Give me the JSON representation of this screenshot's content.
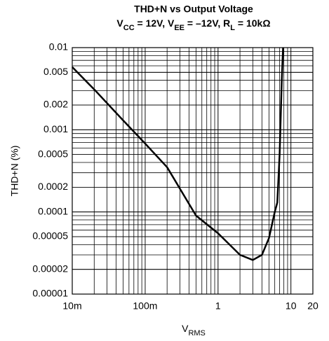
{
  "chart_data": {
    "type": "line",
    "title": "THD+N vs Output Voltage",
    "subtitle": [
      "V",
      "CC",
      " = 12V, V",
      "EE",
      " = –12V, R",
      "L",
      " = 10kΩ"
    ],
    "xlabel": [
      "V",
      "RMS"
    ],
    "ylabel": "THD+N (%)",
    "x": [
      0.01,
      0.02,
      0.05,
      0.1,
      0.2,
      0.5,
      1,
      2,
      3,
      4,
      5,
      6,
      6.5,
      7,
      7.5,
      7.8
    ],
    "series": [
      {
        "color": "#000000",
        "values": [
          0.0058,
          0.0031,
          0.0013,
          0.00068,
          0.00035,
          9e-05,
          5.5e-05,
          3e-05,
          2.6e-05,
          3e-05,
          4.8e-05,
          0.0001,
          0.00013,
          0.0005,
          0.004,
          0.01
        ]
      }
    ],
    "xlim": [
      0.01,
      20
    ],
    "ylim": [
      1e-05,
      0.01
    ],
    "xticks": [
      {
        "value": 0.01,
        "label": "10m"
      },
      {
        "value": 0.1,
        "label": "100m"
      },
      1,
      10,
      20
    ],
    "yticks": [
      0.01,
      0.005,
      0.002,
      0.001,
      0.0005,
      0.0002,
      0.0001,
      5e-05,
      2e-05,
      1e-05
    ],
    "xscale": "log",
    "yscale": "log",
    "grid": true,
    "minor_grid": true
  }
}
